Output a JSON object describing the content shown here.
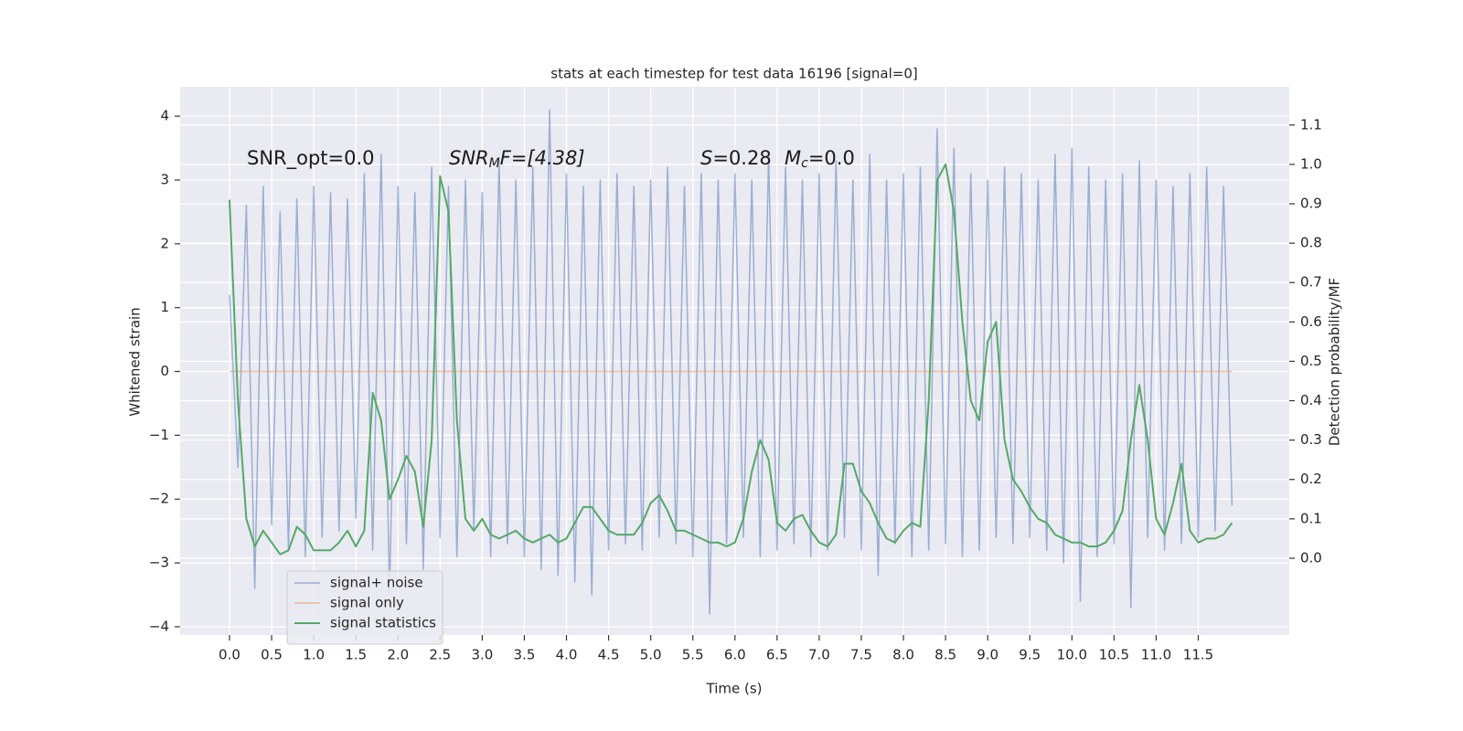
{
  "chart_data": {
    "type": "line",
    "title": "stats at each timestep for test data 16196 [signal=0]",
    "x_label": "Time (s)",
    "y_label": "Whitened strain",
    "y2_label": "Detection probability/MF",
    "annotations": {
      "snr_opt": "SNR_opt=0.0",
      "snr_mf": {
        "base": "SNR",
        "sub": "M",
        "rest": "F=[4.38]"
      },
      "s": {
        "base": "S",
        "rest": "=0.28"
      },
      "mc": {
        "base": "M",
        "sub": "c",
        "rest": "=0.0"
      }
    },
    "grid": true,
    "legend": "lower left",
    "xlim": [
      -0.586,
      12.58
    ],
    "ylim": [
      -4.13,
      4.46
    ],
    "y2lim": [
      -0.195,
      1.197
    ],
    "xticks": [
      {
        "value": 0,
        "label": "0.0"
      },
      0.5,
      {
        "value": 1,
        "label": "1.0"
      },
      1.5,
      {
        "value": 2,
        "label": "2.0"
      },
      2.5,
      {
        "value": 3,
        "label": "3.0"
      },
      3.5,
      {
        "value": 4,
        "label": "4.0"
      },
      4.5,
      {
        "value": 5,
        "label": "5.0"
      },
      5.5,
      {
        "value": 6,
        "label": "6.0"
      },
      6.5,
      {
        "value": 7,
        "label": "7.0"
      },
      7.5,
      {
        "value": 8,
        "label": "8.0"
      },
      8.5,
      {
        "value": 9,
        "label": "9.0"
      },
      9.5,
      {
        "value": 10,
        "label": "10.0"
      },
      10.5,
      {
        "value": 11,
        "label": "11.0"
      },
      11.5
    ],
    "yticks": [
      {
        "value": -4,
        "label": "−4"
      },
      {
        "value": -3,
        "label": "−3"
      },
      {
        "value": -2,
        "label": "−2"
      },
      {
        "value": -1,
        "label": "−1"
      },
      0,
      1,
      2,
      3,
      4
    ],
    "y2ticks": [
      {
        "value": 0,
        "label": "0.0"
      },
      0.1,
      0.2,
      0.3,
      0.4,
      0.5,
      0.6,
      0.7,
      0.8,
      0.9,
      {
        "value": 1,
        "label": "1.0"
      },
      1.1
    ],
    "x": [
      0,
      0.1,
      0.2,
      0.3,
      0.4,
      0.5,
      0.6,
      0.7,
      0.8,
      0.9,
      1,
      1.1,
      1.2,
      1.3,
      1.4,
      1.5,
      1.6,
      1.7,
      1.8,
      1.9,
      2,
      2.1,
      2.2,
      2.3,
      2.4,
      2.5,
      2.6,
      2.7,
      2.8,
      2.9,
      3,
      3.1,
      3.2,
      3.3,
      3.4,
      3.5,
      3.6,
      3.7,
      3.8,
      3.9,
      4,
      4.1,
      4.2,
      4.3,
      4.4,
      4.5,
      4.6,
      4.7,
      4.8,
      4.9,
      5,
      5.1,
      5.2,
      5.3,
      5.4,
      5.5,
      5.6,
      5.7,
      5.8,
      5.9,
      6,
      6.1,
      6.2,
      6.3,
      6.4,
      6.5,
      6.6,
      6.7,
      6.8,
      6.9,
      7,
      7.1,
      7.2,
      7.3,
      7.4,
      7.5,
      7.6,
      7.7,
      7.8,
      7.9,
      8,
      8.1,
      8.2,
      8.3,
      8.4,
      8.5,
      8.6,
      8.7,
      8.8,
      8.9,
      9,
      9.1,
      9.2,
      9.3,
      9.4,
      9.5,
      9.6,
      9.7,
      9.8,
      9.9,
      10,
      10.1,
      10.2,
      10.3,
      10.4,
      10.5,
      10.6,
      10.7,
      10.8,
      10.9,
      11,
      11.1,
      11.2,
      11.3,
      11.4,
      11.5,
      11.6,
      11.7,
      11.8,
      11.9
    ],
    "series": [
      {
        "name": "signal+ noise",
        "color": "#4c72b0",
        "values": [
          1.2,
          -1.5,
          2.6,
          -3.4,
          2.9,
          -2.4,
          2.5,
          -2.8,
          2.7,
          -2.9,
          2.9,
          -2.6,
          2.8,
          -2.5,
          2.7,
          -2.3,
          3.1,
          -2.8,
          3.4,
          -3.5,
          2.9,
          -2.7,
          2.8,
          -3.1,
          3.2,
          -2.6,
          2.9,
          -2.9,
          3.0,
          -2.5,
          2.8,
          -2.9,
          3.3,
          -2.7,
          3.0,
          -2.9,
          3.2,
          -3.1,
          4.1,
          -3.2,
          3.1,
          -3.3,
          2.9,
          -3.5,
          3.0,
          -2.8,
          3.1,
          -2.7,
          2.9,
          -2.8,
          3.0,
          -2.6,
          3.2,
          -2.7,
          2.9,
          -2.9,
          3.1,
          -3.8,
          3.0,
          -2.7,
          3.1,
          -2.6,
          3.0,
          -2.9,
          3.4,
          -2.8,
          3.2,
          -2.7,
          3.0,
          -2.9,
          3.1,
          -2.8,
          3.3,
          -2.6,
          3.0,
          -2.8,
          3.4,
          -3.2,
          3.0,
          -2.7,
          3.1,
          -2.9,
          3.2,
          -2.8,
          3.8,
          -2.7,
          3.5,
          -2.9,
          3.1,
          -2.8,
          3.0,
          -2.6,
          3.2,
          -2.7,
          3.1,
          -2.6,
          3.0,
          -2.8,
          3.4,
          -3.0,
          3.5,
          -3.6,
          3.2,
          -2.9,
          3.0,
          -2.7,
          3.1,
          -3.7,
          3.3,
          -2.6,
          3.0,
          -2.8,
          2.9,
          -2.7,
          3.1,
          -2.6,
          3.2,
          -2.5,
          2.9,
          -2.1
        ]
      },
      {
        "name": "signal only",
        "color": "#dd8452",
        "values": [
          0,
          0,
          0,
          0,
          0,
          0,
          0,
          0,
          0,
          0,
          0,
          0,
          0,
          0,
          0,
          0,
          0,
          0,
          0,
          0,
          0,
          0,
          0,
          0,
          0,
          0,
          0,
          0,
          0,
          0,
          0,
          0,
          0,
          0,
          0,
          0,
          0,
          0,
          0,
          0,
          0,
          0,
          0,
          0,
          0,
          0,
          0,
          0,
          0,
          0,
          0,
          0,
          0,
          0,
          0,
          0,
          0,
          0,
          0,
          0,
          0,
          0,
          0,
          0,
          0,
          0,
          0,
          0,
          0,
          0,
          0,
          0,
          0,
          0,
          0,
          0,
          0,
          0,
          0,
          0,
          0,
          0,
          0,
          0,
          0,
          0,
          0,
          0,
          0,
          0,
          0,
          0,
          0,
          0,
          0,
          0,
          0,
          0,
          0,
          0,
          0,
          0,
          0,
          0,
          0,
          0,
          0,
          0,
          0,
          0,
          0,
          0,
          0,
          0,
          0,
          0,
          0,
          0,
          0,
          0
        ]
      },
      {
        "name": "signal statistics",
        "color": "#55a868",
        "axis": "y2",
        "values": [
          0.91,
          0.4,
          0.1,
          0.03,
          0.07,
          0.04,
          0.01,
          0.02,
          0.08,
          0.06,
          0.02,
          0.02,
          0.02,
          0.04,
          0.07,
          0.03,
          0.07,
          0.42,
          0.35,
          0.15,
          0.2,
          0.26,
          0.22,
          0.08,
          0.3,
          0.97,
          0.88,
          0.35,
          0.1,
          0.07,
          0.1,
          0.06,
          0.05,
          0.06,
          0.07,
          0.05,
          0.04,
          0.05,
          0.06,
          0.04,
          0.05,
          0.09,
          0.13,
          0.13,
          0.1,
          0.07,
          0.06,
          0.06,
          0.06,
          0.09,
          0.14,
          0.16,
          0.12,
          0.07,
          0.07,
          0.06,
          0.05,
          0.04,
          0.04,
          0.03,
          0.04,
          0.1,
          0.22,
          0.3,
          0.25,
          0.09,
          0.07,
          0.1,
          0.11,
          0.07,
          0.04,
          0.03,
          0.06,
          0.24,
          0.24,
          0.17,
          0.14,
          0.09,
          0.05,
          0.04,
          0.07,
          0.09,
          0.08,
          0.4,
          0.96,
          1.0,
          0.88,
          0.6,
          0.4,
          0.35,
          0.55,
          0.6,
          0.3,
          0.2,
          0.17,
          0.13,
          0.1,
          0.09,
          0.06,
          0.05,
          0.04,
          0.04,
          0.03,
          0.03,
          0.04,
          0.07,
          0.12,
          0.3,
          0.44,
          0.3,
          0.1,
          0.06,
          0.14,
          0.24,
          0.07,
          0.04,
          0.05,
          0.05,
          0.06,
          0.09
        ]
      }
    ]
  }
}
